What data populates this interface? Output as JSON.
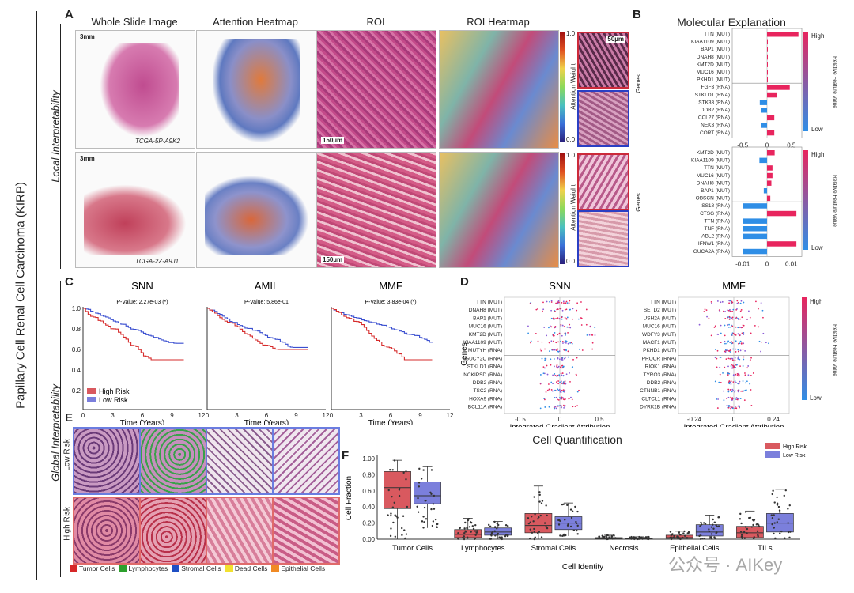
{
  "sidebar": {
    "main": "Papillary Cell Renal Cell Carcinoma (KIRP)",
    "local": "Local Interpretability",
    "global": "Global Interpretability"
  },
  "panelA": {
    "letter": "A",
    "headers": [
      "Whole Slide Image",
      "Attention Heatmap",
      "ROI",
      "ROI Heatmap"
    ],
    "case1": "TCGA-5P-A9K2",
    "case2": "TCGA-2Z-A9J1",
    "scale_wsi": "3mm",
    "scale_roi": "150µm",
    "scale_patch": "50µm",
    "cbar_label": "Attention Weight",
    "cbar_top": "1.0",
    "cbar_bottom": "0.0"
  },
  "panelB": {
    "letter": "B",
    "title": "Molecular Explanation",
    "ylabel": "Genes",
    "cbar_high": "High",
    "cbar_low": "Low",
    "cbar_label": "Relative Feature Value",
    "top": {
      "genes": [
        "TTN (MUT)",
        "KIAA1109 (MUT)",
        "BAP1 (MUT)",
        "DNAH8 (MUT)",
        "KMT2D (MUT)",
        "MUC16 (MUT)",
        "PKHD1 (MUT)",
        "FGF3 (RNA)",
        "STKLD1 (RNA)",
        "STK33 (RNA)",
        "DDB2 (RNA)",
        "CCL27 (RNA)",
        "NEK3 (RNA)",
        "CORT (RNA)"
      ],
      "values": [
        0.65,
        0.01,
        0.005,
        0.005,
        0.005,
        0.005,
        0.005,
        0.47,
        0.2,
        -0.15,
        -0.12,
        0.15,
        -0.12,
        0.15
      ],
      "ticks": [
        "-0.5",
        "0",
        "0.5"
      ],
      "xlim": [
        -0.72,
        0.72
      ]
    },
    "bottom": {
      "genes": [
        "KMT2D (MUT)",
        "KIAA1109 (MUT)",
        "TTN (MUT)",
        "MUC16 (MUT)",
        "DNAH8 (MUT)",
        "BAP1 (MUT)",
        "OBSCN (MUT)",
        "SS18 (RNA)",
        "CTSG (RNA)",
        "TTN (RNA)",
        "TNF (RNA)",
        "ABL2 (RNA)",
        "IFNW1 (RNA)",
        "GUCA2A (RNA)"
      ],
      "values": [
        0.0035,
        -0.0035,
        0.0025,
        0.0025,
        0.002,
        -0.0015,
        0.0015,
        -0.011,
        0.0135,
        -0.011,
        -0.011,
        -0.011,
        0.0135,
        -0.011
      ],
      "ticks": [
        "-0.01",
        "0",
        "0.01"
      ],
      "xlim": [
        -0.016,
        0.016
      ]
    }
  },
  "panelC": {
    "letter": "C",
    "ylabel": "",
    "xlabel": "Time (Years)",
    "plots": [
      {
        "title": "SNN",
        "p": "P-Value: 2.27e-03 (*)"
      },
      {
        "title": "AMIL",
        "p": "P-Value: 5.86e-01"
      },
      {
        "title": "MMF",
        "p": "P-Value: 3.83e-04 (*)"
      }
    ],
    "yticks": [
      "1.0",
      "0.8",
      "0.6",
      "0.4",
      "0.2"
    ],
    "xticks": [
      "0",
      "3",
      "6",
      "9",
      "12"
    ],
    "legend_high": "High Risk",
    "legend_low": "Low Risk"
  },
  "panelD": {
    "letter": "D",
    "ylabel": "Genes",
    "xlabel": "Integrated Gradient Attribution",
    "cbar_high": "High",
    "cbar_low": "Low",
    "cbar_label": "Relative Feature Value",
    "snn": {
      "title": "SNN",
      "genes": [
        "TTN (MUT)",
        "DNAH8 (MUT)",
        "BAP1 (MUT)",
        "MUC16 (MUT)",
        "KMT2D (MUT)",
        "KIAA1109 (MUT)",
        "MUTYH (RNA)",
        "GUCY2C (RNA)",
        "STKLD1 (RNA)",
        "NCKIPSD (RNA)",
        "DDB2 (RNA)",
        "TSC2 (RNA)",
        "HOXA9 (RNA)",
        "BCL11A (RNA)"
      ],
      "ticks": [
        "-0.5",
        "0",
        "0.5"
      ]
    },
    "mmf": {
      "title": "MMF",
      "genes": [
        "TTN (MUT)",
        "SETD2 (MUT)",
        "USH2A (MUT)",
        "MUC16 (MUT)",
        "WDFY3 (MUT)",
        "MACF1 (MUT)",
        "PKHD1 (MUT)",
        "PROCR (RNA)",
        "RIOK1 (RNA)",
        "TYRO3 (RNA)",
        "DDB2 (RNA)",
        "CTNNB1 (RNA)",
        "CLTCL1 (RNA)",
        "DYRK1B (RNA)"
      ],
      "ticks": [
        "-0.24",
        "0",
        "0.24"
      ]
    }
  },
  "panelE": {
    "letter": "E",
    "low": "Low Risk",
    "high": "High Risk",
    "legend": [
      {
        "label": "Tumor Cells",
        "color": "#d62728"
      },
      {
        "label": "Lymphocytes",
        "color": "#2ca02c"
      },
      {
        "label": "Stromal Cells",
        "color": "#1f4fc4"
      },
      {
        "label": "Dead Cells",
        "color": "#f2e130"
      },
      {
        "label": "Epithelial Cells",
        "color": "#f08a24"
      }
    ]
  },
  "panelF": {
    "letter": "F",
    "title": "Cell Quantification",
    "ylabel": "Cell Fraction",
    "xlabel": "Cell Identity",
    "legend_high": "High Risk",
    "legend_low": "Low Risk",
    "yticks": [
      "1.00",
      "0.80",
      "0.60",
      "0.40",
      "0.20",
      "0.00"
    ]
  },
  "chart_data": {
    "type": "box",
    "title": "Cell Quantification",
    "xlabel": "Cell Identity",
    "ylabel": "Cell Fraction",
    "ylim": [
      0,
      1
    ],
    "categories": [
      "Tumor Cells",
      "Lymphocytes",
      "Stromal Cells",
      "Necrosis",
      "Epithelial Cells",
      "TILs"
    ],
    "series": [
      {
        "name": "High Risk",
        "color": "#d9595f",
        "boxes": [
          {
            "q1": 0.38,
            "med": 0.64,
            "q3": 0.84,
            "lo": 0.0,
            "hi": 0.98
          },
          {
            "q1": 0.02,
            "med": 0.06,
            "q3": 0.12,
            "lo": 0.0,
            "hi": 0.26
          },
          {
            "q1": 0.08,
            "med": 0.17,
            "q3": 0.32,
            "lo": 0.0,
            "hi": 0.66
          },
          {
            "q1": 0.0,
            "med": 0.005,
            "q3": 0.02,
            "lo": 0.0,
            "hi": 0.05
          },
          {
            "q1": 0.01,
            "med": 0.02,
            "q3": 0.05,
            "lo": 0.0,
            "hi": 0.1
          },
          {
            "q1": 0.02,
            "med": 0.08,
            "q3": 0.16,
            "lo": 0.0,
            "hi": 0.35
          }
        ]
      },
      {
        "name": "Low Risk",
        "color": "#7b7fdc",
        "boxes": [
          {
            "q1": 0.44,
            "med": 0.54,
            "q3": 0.71,
            "lo": 0.14,
            "hi": 0.9
          },
          {
            "q1": 0.05,
            "med": 0.09,
            "q3": 0.14,
            "lo": 0.0,
            "hi": 0.22
          },
          {
            "q1": 0.12,
            "med": 0.2,
            "q3": 0.28,
            "lo": 0.04,
            "hi": 0.45
          },
          {
            "q1": 0.0,
            "med": 0.005,
            "q3": 0.015,
            "lo": 0.0,
            "hi": 0.03
          },
          {
            "q1": 0.04,
            "med": 0.09,
            "q3": 0.18,
            "lo": 0.0,
            "hi": 0.3
          },
          {
            "q1": 0.09,
            "med": 0.2,
            "q3": 0.32,
            "lo": 0.0,
            "hi": 0.62
          }
        ]
      }
    ]
  },
  "watermark": "公众号 · AIKey"
}
